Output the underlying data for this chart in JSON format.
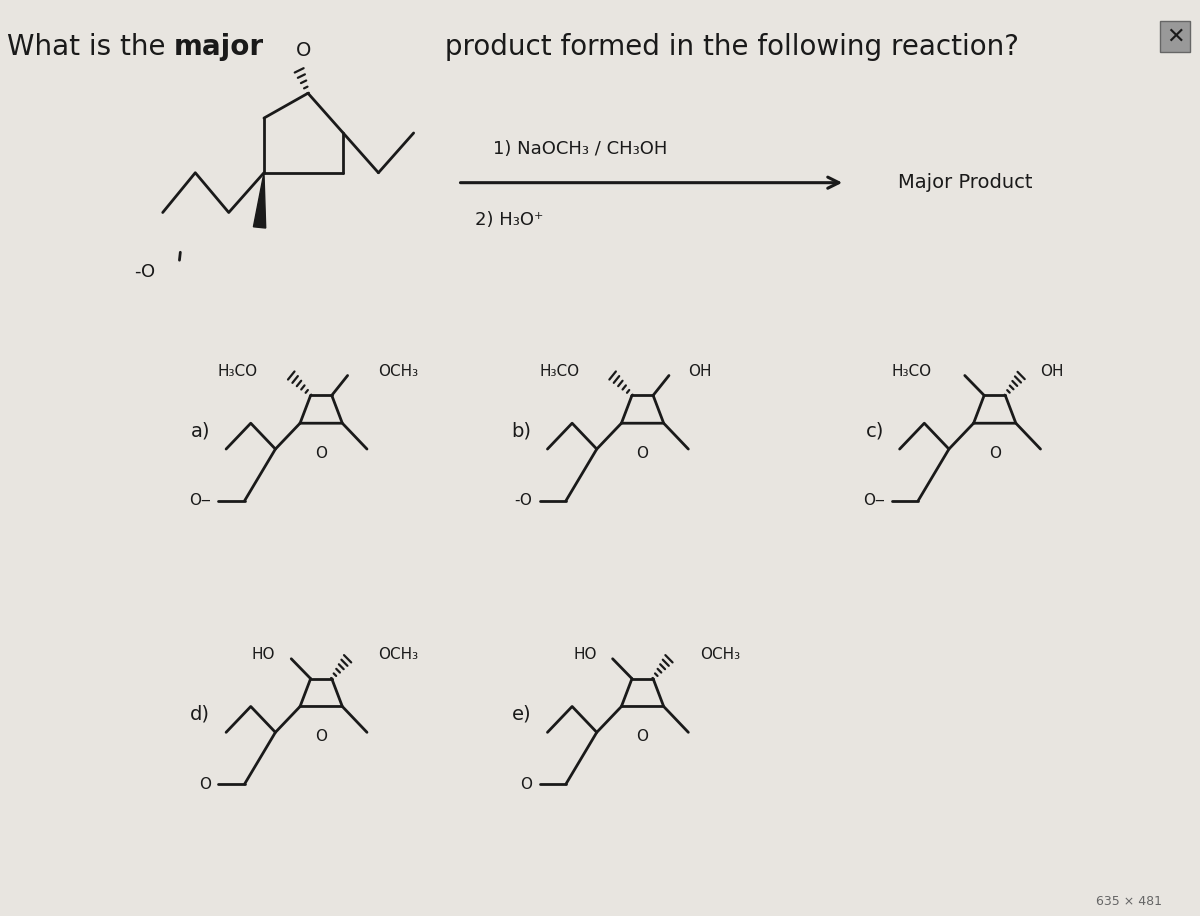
{
  "background_color": "#e8e5e0",
  "title_parts": [
    "What is the ",
    "major",
    " product formed in the following reaction?"
  ],
  "title_fontsize": 20,
  "fig_width": 12.0,
  "fig_height": 9.16,
  "text_color": "#1a1a1a",
  "cond1": "1) NaOCH₃ / CH₃OH",
  "cond2": "2) H₃O⁺",
  "major_product_label": "Major Product",
  "watermark_text": "635 × 481",
  "choice_labels": [
    "a)",
    "b)",
    "c)",
    "d)",
    "e)"
  ]
}
